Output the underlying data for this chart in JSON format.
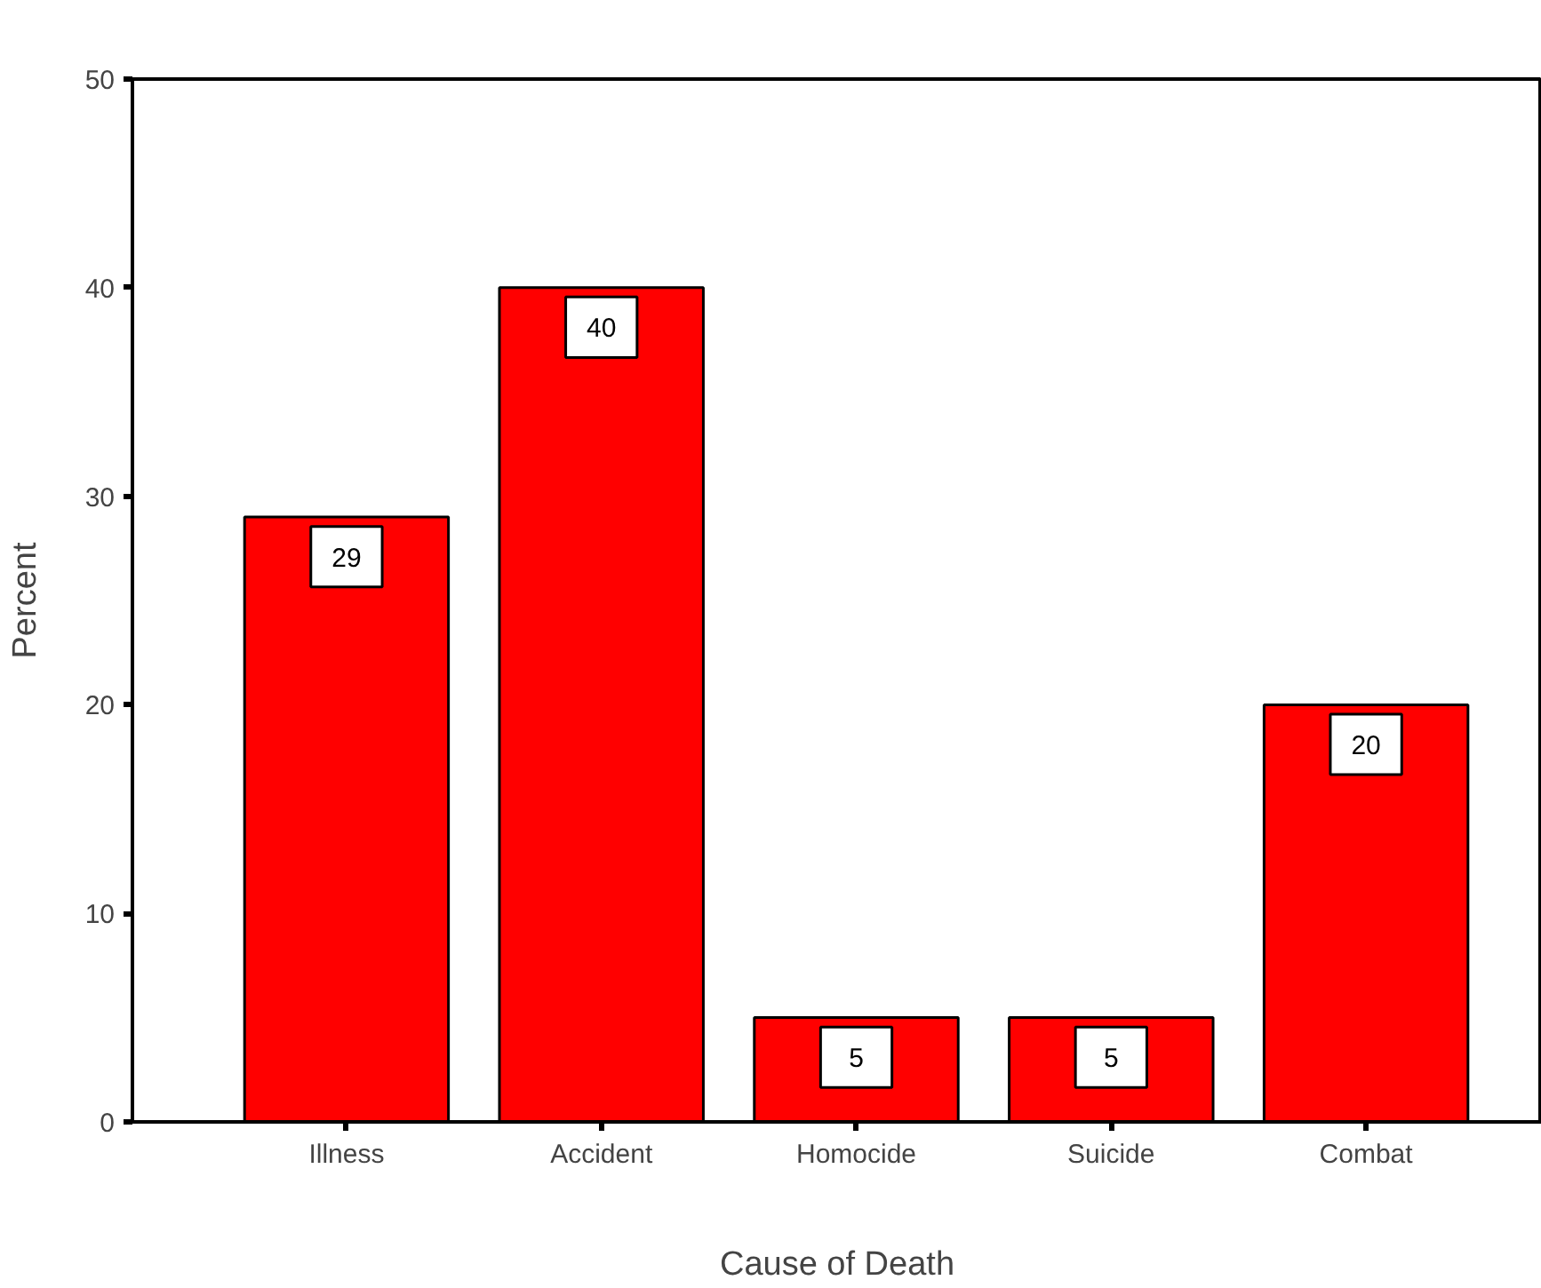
{
  "chart_data": {
    "type": "bar",
    "xlabel": "Cause of Death",
    "ylabel": "Percent",
    "categories": [
      "Illness",
      "Accident",
      "Homocide",
      "Suicide",
      "Combat"
    ],
    "values": [
      29,
      40,
      5,
      5,
      20
    ],
    "color": "#ff0000",
    "ylim": [
      0,
      50
    ],
    "yticks": [
      0,
      10,
      20,
      30,
      40,
      50
    ],
    "grid": false,
    "data_labels": true
  }
}
